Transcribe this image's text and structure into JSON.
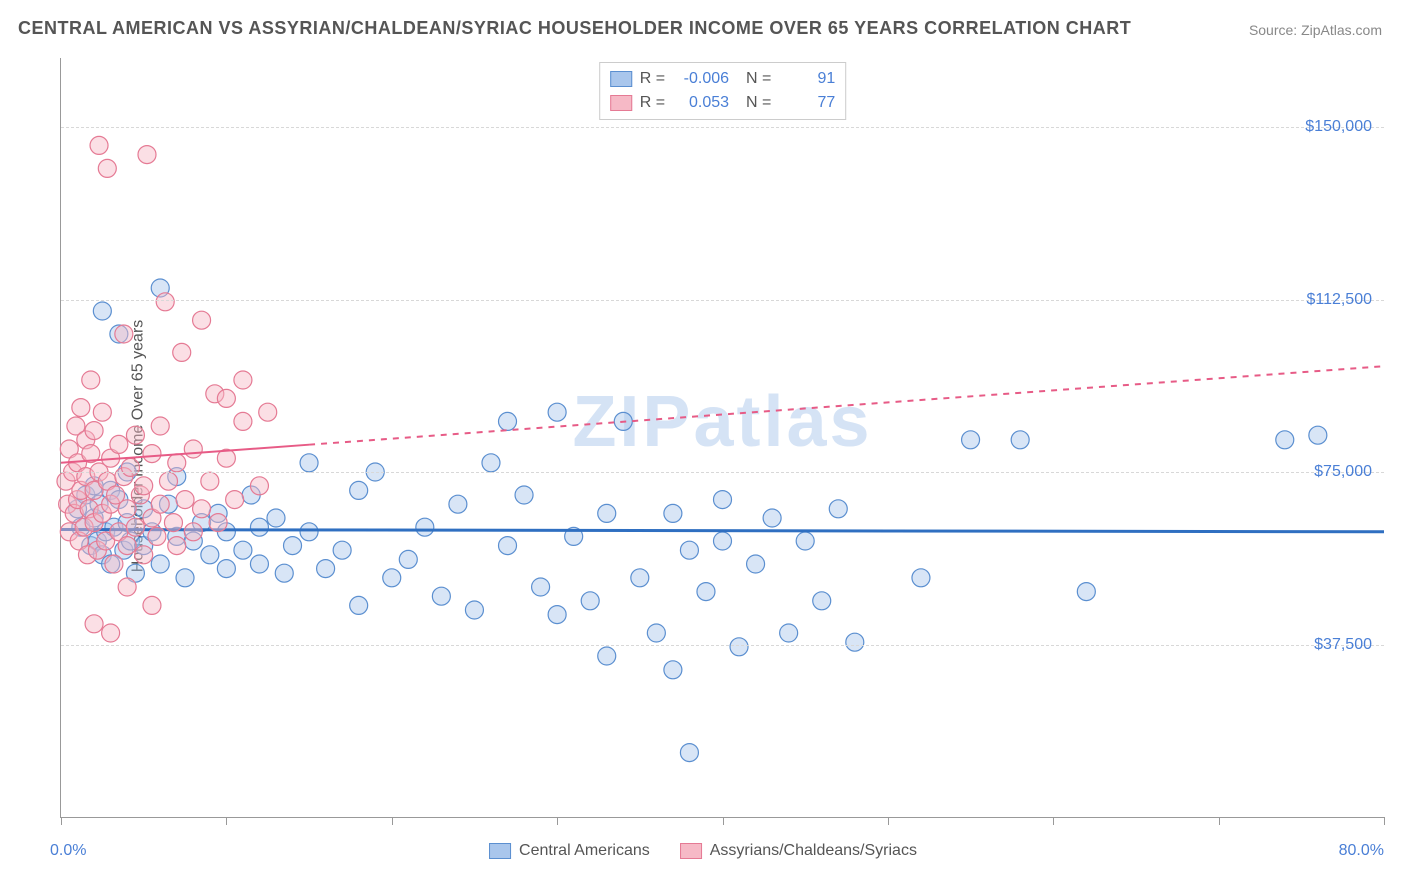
{
  "title": "CENTRAL AMERICAN VS ASSYRIAN/CHALDEAN/SYRIAC HOUSEHOLDER INCOME OVER 65 YEARS CORRELATION CHART",
  "source": "Source: ZipAtlas.com",
  "watermark": "ZIPatlas",
  "ylabel": "Householder Income Over 65 years",
  "chart": {
    "type": "scatter",
    "xlim": [
      0,
      80
    ],
    "ylim": [
      0,
      165000
    ],
    "xaxis_min_label": "0.0%",
    "xaxis_max_label": "80.0%",
    "xtick_positions": [
      0,
      10,
      20,
      30,
      40,
      50,
      60,
      70,
      80
    ],
    "yticks": [
      {
        "value": 37500,
        "label": "$37,500"
      },
      {
        "value": 75000,
        "label": "$75,000"
      },
      {
        "value": 112500,
        "label": "$112,500"
      },
      {
        "value": 150000,
        "label": "$150,000"
      }
    ],
    "background_color": "#ffffff",
    "grid_color": "#d8d8d8",
    "marker_radius": 9,
    "marker_opacity": 0.45,
    "series": [
      {
        "name": "Central Americans",
        "color_fill": "#a9c6ec",
        "color_stroke": "#5b8fd0",
        "trend_color": "#2f6fc1",
        "trend_dash": "none",
        "r": "-0.006",
        "n": "91",
        "trend": {
          "x1": 0,
          "y1": 62500,
          "x2": 80,
          "y2": 62000
        },
        "points": [
          [
            1,
            67000
          ],
          [
            1.2,
            63000
          ],
          [
            1.5,
            70000
          ],
          [
            1.8,
            59000
          ],
          [
            2,
            65000
          ],
          [
            2,
            72000
          ],
          [
            2.2,
            60000
          ],
          [
            2.3,
            68000
          ],
          [
            2.5,
            57000
          ],
          [
            2.5,
            110000
          ],
          [
            2.7,
            62000
          ],
          [
            3,
            71000
          ],
          [
            3,
            55000
          ],
          [
            3.2,
            63000
          ],
          [
            3.5,
            69000
          ],
          [
            3.5,
            105000
          ],
          [
            3.8,
            58000
          ],
          [
            4,
            64000
          ],
          [
            4,
            75000
          ],
          [
            4.2,
            60000
          ],
          [
            4.5,
            53000
          ],
          [
            5,
            67000
          ],
          [
            5,
            59000
          ],
          [
            5.5,
            62000
          ],
          [
            6,
            55000
          ],
          [
            6,
            115000
          ],
          [
            6.5,
            68000
          ],
          [
            7,
            61000
          ],
          [
            7,
            74000
          ],
          [
            7.5,
            52000
          ],
          [
            8,
            60000
          ],
          [
            8.5,
            64000
          ],
          [
            9,
            57000
          ],
          [
            9.5,
            66000
          ],
          [
            10,
            54000
          ],
          [
            10,
            62000
          ],
          [
            11,
            58000
          ],
          [
            11.5,
            70000
          ],
          [
            12,
            55000
          ],
          [
            12,
            63000
          ],
          [
            13,
            65000
          ],
          [
            13.5,
            53000
          ],
          [
            14,
            59000
          ],
          [
            15,
            62000
          ],
          [
            15,
            77000
          ],
          [
            16,
            54000
          ],
          [
            17,
            58000
          ],
          [
            18,
            71000
          ],
          [
            18,
            46000
          ],
          [
            19,
            75000
          ],
          [
            20,
            52000
          ],
          [
            21,
            56000
          ],
          [
            22,
            63000
          ],
          [
            23,
            48000
          ],
          [
            24,
            68000
          ],
          [
            25,
            45000
          ],
          [
            26,
            77000
          ],
          [
            27,
            59000
          ],
          [
            27,
            86000
          ],
          [
            28,
            70000
          ],
          [
            29,
            50000
          ],
          [
            30,
            88000
          ],
          [
            30,
            44000
          ],
          [
            31,
            61000
          ],
          [
            32,
            47000
          ],
          [
            33,
            66000
          ],
          [
            33,
            35000
          ],
          [
            34,
            86000
          ],
          [
            35,
            52000
          ],
          [
            36,
            40000
          ],
          [
            37,
            66000
          ],
          [
            37,
            32000
          ],
          [
            38,
            58000
          ],
          [
            39,
            49000
          ],
          [
            40,
            60000
          ],
          [
            40,
            69000
          ],
          [
            41,
            37000
          ],
          [
            42,
            55000
          ],
          [
            43,
            65000
          ],
          [
            44,
            40000
          ],
          [
            45,
            60000
          ],
          [
            46,
            47000
          ],
          [
            47,
            67000
          ],
          [
            48,
            38000
          ],
          [
            38,
            14000
          ],
          [
            52,
            52000
          ],
          [
            55,
            82000
          ],
          [
            58,
            82000
          ],
          [
            62,
            49000
          ],
          [
            74,
            82000
          ],
          [
            76,
            83000
          ]
        ]
      },
      {
        "name": "Assyrians/Chaldeans/Syriacs",
        "color_fill": "#f6b9c6",
        "color_stroke": "#e57a94",
        "trend_color": "#e75b86",
        "trend_dash": "6,6",
        "r": "0.053",
        "n": "77",
        "trend": {
          "x1": 0,
          "y1": 77000,
          "x2": 80,
          "y2": 98000
        },
        "points": [
          [
            0.3,
            73000
          ],
          [
            0.4,
            68000
          ],
          [
            0.5,
            80000
          ],
          [
            0.5,
            62000
          ],
          [
            0.7,
            75000
          ],
          [
            0.8,
            66000
          ],
          [
            0.9,
            85000
          ],
          [
            1,
            69000
          ],
          [
            1,
            77000
          ],
          [
            1.1,
            60000
          ],
          [
            1.2,
            71000
          ],
          [
            1.2,
            89000
          ],
          [
            1.4,
            63000
          ],
          [
            1.5,
            74000
          ],
          [
            1.5,
            82000
          ],
          [
            1.6,
            57000
          ],
          [
            1.7,
            67000
          ],
          [
            1.8,
            79000
          ],
          [
            1.8,
            95000
          ],
          [
            2,
            64000
          ],
          [
            2,
            71000
          ],
          [
            2,
            84000
          ],
          [
            2.2,
            58000
          ],
          [
            2.3,
            75000
          ],
          [
            2.3,
            146000
          ],
          [
            2.5,
            66000
          ],
          [
            2.5,
            88000
          ],
          [
            2.7,
            60000
          ],
          [
            2.8,
            73000
          ],
          [
            2.8,
            141000
          ],
          [
            3,
            68000
          ],
          [
            3,
            78000
          ],
          [
            3.2,
            55000
          ],
          [
            3.3,
            70000
          ],
          [
            3.5,
            81000
          ],
          [
            3.5,
            62000
          ],
          [
            3.8,
            74000
          ],
          [
            3.8,
            105000
          ],
          [
            4,
            59000
          ],
          [
            4,
            67000
          ],
          [
            4.2,
            76000
          ],
          [
            4.5,
            63000
          ],
          [
            4.5,
            83000
          ],
          [
            4.8,
            70000
          ],
          [
            5,
            57000
          ],
          [
            5,
            72000
          ],
          [
            5.2,
            144000
          ],
          [
            5.5,
            65000
          ],
          [
            5.5,
            79000
          ],
          [
            5.8,
            61000
          ],
          [
            6,
            68000
          ],
          [
            6,
            85000
          ],
          [
            6.3,
            112000
          ],
          [
            6.5,
            73000
          ],
          [
            6.8,
            64000
          ],
          [
            7,
            77000
          ],
          [
            7,
            59000
          ],
          [
            7.3,
            101000
          ],
          [
            7.5,
            69000
          ],
          [
            8,
            62000
          ],
          [
            8,
            80000
          ],
          [
            8.5,
            67000
          ],
          [
            8.5,
            108000
          ],
          [
            9,
            73000
          ],
          [
            9.3,
            92000
          ],
          [
            9.5,
            64000
          ],
          [
            10,
            78000
          ],
          [
            10,
            91000
          ],
          [
            10.5,
            69000
          ],
          [
            11,
            86000
          ],
          [
            11,
            95000
          ],
          [
            12,
            72000
          ],
          [
            12.5,
            88000
          ],
          [
            3,
            40000
          ],
          [
            4,
            50000
          ],
          [
            2,
            42000
          ],
          [
            5.5,
            46000
          ]
        ]
      }
    ]
  },
  "legend_bottom": {
    "items": [
      "Central Americans",
      "Assyrians/Chaldeans/Syriacs"
    ]
  },
  "colors": {
    "title": "#555555",
    "source": "#888888",
    "axis": "#999999",
    "tick_label": "#4a7fd6"
  }
}
